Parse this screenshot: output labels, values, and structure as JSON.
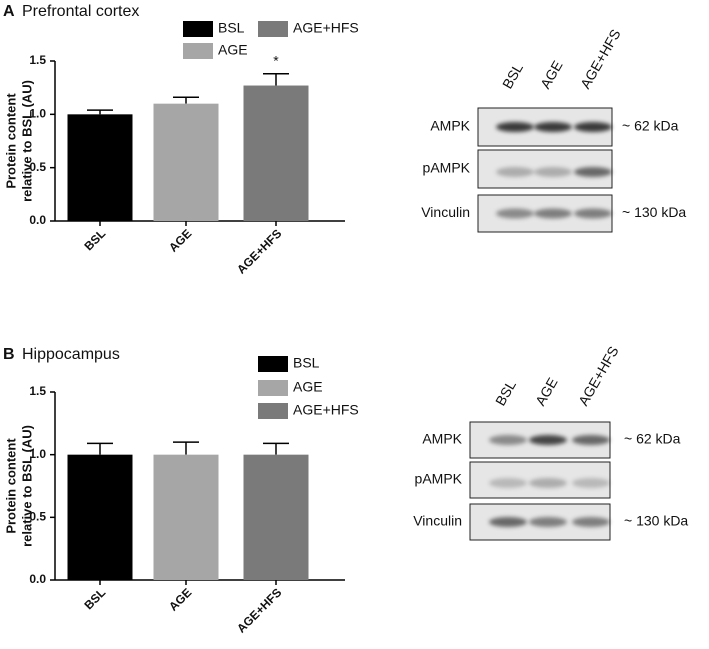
{
  "chart_data": [
    {
      "type": "bar",
      "panel": "A",
      "title": "Prefrontal cortex",
      "ylabel": [
        "Protein content",
        "relative to BSL (AU)"
      ],
      "categories": [
        "BSL",
        "AGE",
        "AGE+HFS"
      ],
      "values": [
        1.0,
        1.1,
        1.27
      ],
      "errors": [
        0.04,
        0.06,
        0.11
      ],
      "colors": [
        "#000000",
        "#a6a6a6",
        "#7a7a7a"
      ],
      "ylim": [
        0,
        1.5
      ],
      "yticks": [
        {
          "value": 0,
          "label": "0.0"
        },
        {
          "value": 0.5,
          "label": "0.5"
        },
        {
          "value": 1,
          "label": "1.0"
        },
        {
          "value": 1.5,
          "label": "1.5"
        }
      ],
      "annotations": [
        {
          "text": "*",
          "x": "AGE+HFS"
        }
      ]
    },
    {
      "type": "bar",
      "panel": "B",
      "title": "Hippocampus",
      "ylabel": [
        "Protein content",
        "relative to BSL (AU)"
      ],
      "categories": [
        "BSL",
        "AGE",
        "AGE+HFS"
      ],
      "values": [
        1.0,
        1.0,
        1.0
      ],
      "errors": [
        0.09,
        0.1,
        0.09
      ],
      "colors": [
        "#000000",
        "#a6a6a6",
        "#7a7a7a"
      ],
      "ylim": [
        0,
        1.5
      ],
      "yticks": [
        {
          "value": 0,
          "label": "0.0"
        },
        {
          "value": 0.5,
          "label": "0.5"
        },
        {
          "value": 1,
          "label": "1.0"
        },
        {
          "value": 1.5,
          "label": "1.5"
        }
      ],
      "annotations": []
    }
  ],
  "blots": [
    {
      "lanes": [
        "BSL",
        "AGE",
        "AGE+HFS"
      ],
      "rows": [
        {
          "label": "AMPK",
          "size": "~ 62 kDa"
        },
        {
          "label": "pAMPK"
        },
        {
          "label": "Vinculin",
          "size": "~ 130 kDa"
        }
      ]
    },
    {
      "lanes": [
        "BSL",
        "AGE",
        "AGE+HFS"
      ],
      "rows": [
        {
          "label": "AMPK",
          "size": "~ 62 kDa"
        },
        {
          "label": "pAMPK"
        },
        {
          "label": "Vinculin",
          "size": "~ 130 kDa"
        }
      ]
    }
  ]
}
